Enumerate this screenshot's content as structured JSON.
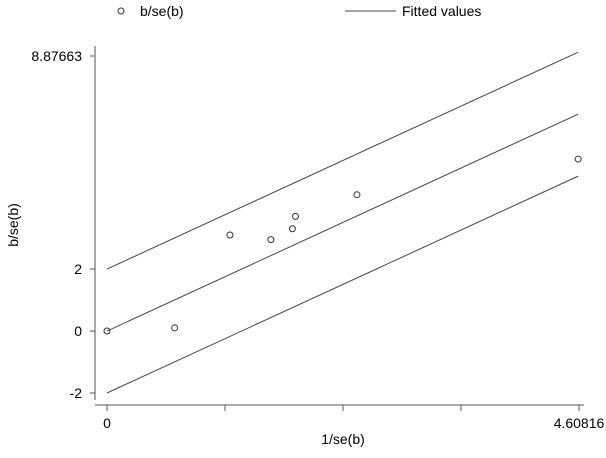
{
  "chart_data": {
    "type": "scatter",
    "title": "",
    "xlabel": "1/se(b)",
    "ylabel": "b/se(b)",
    "xlim": [
      0,
      4.60816
    ],
    "ylim": [
      -2,
      8.87663
    ],
    "x_tick_labels": [
      "0",
      "4.60816"
    ],
    "x_tick_values": [
      0,
      1.15204,
      2.30408,
      3.45612,
      4.60816
    ],
    "y_tick_labels": [
      "-2",
      "0",
      "2",
      "8.87663"
    ],
    "y_tick_values": [
      -2,
      0,
      2,
      8.87663
    ],
    "legend": {
      "placement": "top",
      "entries": [
        {
          "label": "b/se(b)",
          "marker": "circle"
        },
        {
          "label": "Fitted values",
          "marker": "line"
        }
      ]
    },
    "series": [
      {
        "name": "b/se(b)",
        "kind": "points",
        "x": [
          0,
          0.66,
          1.2,
          1.6,
          1.81,
          1.84,
          2.44,
          4.6
        ],
        "y": [
          0,
          0.1,
          3.1,
          2.95,
          3.3,
          3.7,
          4.4,
          5.55
        ]
      },
      {
        "name": "Fitted values",
        "kind": "line",
        "x": [
          0,
          4.6
        ],
        "y": [
          0,
          7
        ]
      }
    ],
    "confidence_lines": [
      {
        "x": [
          0,
          4.6
        ],
        "y": [
          2,
          9
        ]
      },
      {
        "x": [
          0,
          4.6
        ],
        "y": [
          -2,
          5
        ]
      }
    ],
    "grid": false,
    "colors": {
      "line": "#444444",
      "marker": "#333333",
      "axis": "#555555"
    }
  }
}
